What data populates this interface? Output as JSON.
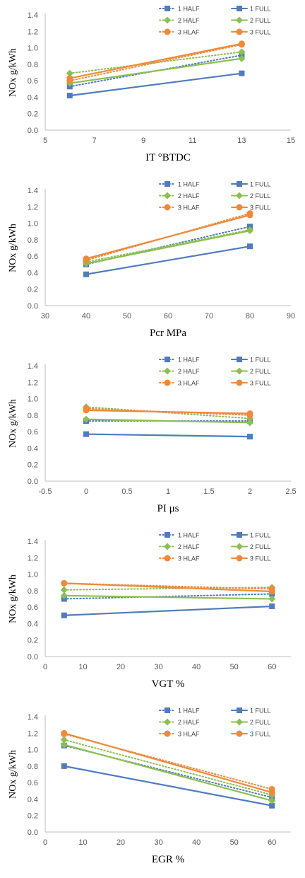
{
  "colors": {
    "s1": "#4f7bbf",
    "s2": "#8cbf4f",
    "s3": "#f0893c"
  },
  "chart_data": [
    {
      "type": "line",
      "xlabel": "IT °BTDC",
      "ylabel": "NOx g/kWh",
      "xlim": [
        5,
        15
      ],
      "xticks": [
        5,
        7,
        9,
        11,
        13,
        15
      ],
      "ylim": [
        0,
        1.4
      ],
      "yticks": [
        "0.0",
        "0.2",
        "0.4",
        "0.6",
        "0.8",
        "1.0",
        "1.2",
        "1.4"
      ],
      "grid": false,
      "legend": "top-right",
      "series": [
        {
          "name": "1 HALF",
          "style": "dotted",
          "color": "s1",
          "marker": "square",
          "x": [
            6,
            13
          ],
          "y": [
            0.53,
            0.91
          ]
        },
        {
          "name": "1 FULL",
          "style": "solid",
          "color": "s1",
          "marker": "square",
          "x": [
            6,
            13
          ],
          "y": [
            0.42,
            0.69
          ]
        },
        {
          "name": "2 HALF",
          "style": "dotted",
          "color": "s2",
          "marker": "diamond",
          "x": [
            6,
            13
          ],
          "y": [
            0.69,
            0.95
          ]
        },
        {
          "name": "2 FULL",
          "style": "solid",
          "color": "s2",
          "marker": "diamond",
          "x": [
            6,
            13
          ],
          "y": [
            0.57,
            0.87
          ]
        },
        {
          "name": "3 HLAF",
          "style": "dotted",
          "color": "s3",
          "marker": "circle",
          "x": [
            6,
            13
          ],
          "y": [
            0.6,
            1.04
          ]
        },
        {
          "name": "3 FULL",
          "style": "solid",
          "color": "s3",
          "marker": "circle",
          "x": [
            6,
            13
          ],
          "y": [
            0.63,
            1.05
          ]
        }
      ]
    },
    {
      "type": "line",
      "xlabel": "Pcr  MPa",
      "ylabel": "NOx g/kWh",
      "xlim": [
        30,
        90
      ],
      "xticks": [
        30,
        40,
        50,
        60,
        70,
        80,
        90
      ],
      "ylim": [
        0,
        1.4
      ],
      "yticks": [
        "0.0",
        "0.2",
        "0.4",
        "0.6",
        "0.8",
        "1.0",
        "1.2",
        "1.4"
      ],
      "grid": false,
      "legend": "top-right",
      "series": [
        {
          "name": "1 HALF",
          "style": "dotted",
          "color": "s1",
          "marker": "square",
          "x": [
            40,
            80
          ],
          "y": [
            0.5,
            0.96
          ]
        },
        {
          "name": "1 FULL",
          "style": "solid",
          "color": "s1",
          "marker": "square",
          "x": [
            40,
            80
          ],
          "y": [
            0.38,
            0.72
          ]
        },
        {
          "name": "2 HALF",
          "style": "dotted",
          "color": "s2",
          "marker": "diamond",
          "x": [
            40,
            80
          ],
          "y": [
            0.53,
            0.92
          ]
        },
        {
          "name": "2 FULL",
          "style": "solid",
          "color": "s2",
          "marker": "diamond",
          "x": [
            40,
            80
          ],
          "y": [
            0.51,
            0.91
          ]
        },
        {
          "name": "3 HLAF",
          "style": "dotted",
          "color": "s3",
          "marker": "circle",
          "x": [
            40,
            80
          ],
          "y": [
            0.55,
            1.12
          ]
        },
        {
          "name": "3 FULL",
          "style": "solid",
          "color": "s3",
          "marker": "circle",
          "x": [
            40,
            80
          ],
          "y": [
            0.57,
            1.1
          ]
        }
      ]
    },
    {
      "type": "line",
      "xlabel": "PI  μs",
      "ylabel": "NOx g/kWh",
      "xlim": [
        -0.5,
        2.5
      ],
      "xticks": [
        -0.5,
        0,
        0.5,
        1,
        1.5,
        2,
        2.5
      ],
      "ylim": [
        0,
        1.4
      ],
      "yticks": [
        "0.0",
        "0.2",
        "0.4",
        "0.6",
        "0.8",
        "1.0",
        "1.2",
        "1.4"
      ],
      "grid": false,
      "legend": "top-right",
      "series": [
        {
          "name": "1 HALF",
          "style": "dotted",
          "color": "s1",
          "marker": "square",
          "x": [
            0,
            2
          ],
          "y": [
            0.73,
            0.73
          ]
        },
        {
          "name": "1 FULL",
          "style": "solid",
          "color": "s1",
          "marker": "square",
          "x": [
            0,
            2
          ],
          "y": [
            0.57,
            0.54
          ]
        },
        {
          "name": "2 HALF",
          "style": "dotted",
          "color": "s2",
          "marker": "diamond",
          "x": [
            0,
            2
          ],
          "y": [
            0.9,
            0.76
          ]
        },
        {
          "name": "2 FULL",
          "style": "solid",
          "color": "s2",
          "marker": "diamond",
          "x": [
            0,
            2
          ],
          "y": [
            0.75,
            0.71
          ]
        },
        {
          "name": "3 HLAF",
          "style": "dotted",
          "color": "s3",
          "marker": "circle",
          "x": [
            0,
            2
          ],
          "y": [
            0.88,
            0.8
          ]
        },
        {
          "name": "3 FULL",
          "style": "solid",
          "color": "s3",
          "marker": "circle",
          "x": [
            0,
            2
          ],
          "y": [
            0.86,
            0.82
          ]
        }
      ]
    },
    {
      "type": "line",
      "xlabel": "VGT  %",
      "ylabel": "NOx g/kWh",
      "xlim": [
        0,
        65
      ],
      "xticks": [
        0,
        10,
        20,
        30,
        40,
        50,
        60
      ],
      "ylim": [
        0,
        1.4
      ],
      "yticks": [
        "0.0",
        "0.2",
        "0.4",
        "0.6",
        "0.8",
        "1.0",
        "1.2",
        "1.4"
      ],
      "grid": false,
      "legend": "top-right",
      "series": [
        {
          "name": "1 HALF",
          "style": "dotted",
          "color": "s1",
          "marker": "square",
          "x": [
            5,
            60
          ],
          "y": [
            0.7,
            0.76
          ]
        },
        {
          "name": "1 FULL",
          "style": "solid",
          "color": "s1",
          "marker": "square",
          "x": [
            5,
            60
          ],
          "y": [
            0.5,
            0.61
          ]
        },
        {
          "name": "2 HALF",
          "style": "dotted",
          "color": "s2",
          "marker": "diamond",
          "x": [
            5,
            60
          ],
          "y": [
            0.81,
            0.84
          ]
        },
        {
          "name": "2 FULL",
          "style": "solid",
          "color": "s2",
          "marker": "diamond",
          "x": [
            5,
            60
          ],
          "y": [
            0.74,
            0.7
          ]
        },
        {
          "name": "3 HLAF",
          "style": "dotted",
          "color": "s3",
          "marker": "circle",
          "x": [
            5,
            60
          ],
          "y": [
            0.89,
            0.82
          ]
        },
        {
          "name": "3 FULL",
          "style": "solid",
          "color": "s3",
          "marker": "circle",
          "x": [
            5,
            60
          ],
          "y": [
            0.89,
            0.79
          ]
        }
      ]
    },
    {
      "type": "line",
      "xlabel": "EGR  %",
      "ylabel": "NOx g/kWh",
      "xlim": [
        0,
        65
      ],
      "xticks": [
        0,
        10,
        20,
        30,
        40,
        50,
        60
      ],
      "ylim": [
        0,
        1.4
      ],
      "yticks": [
        "0.0",
        "0.2",
        "0.4",
        "0.6",
        "0.8",
        "1.0",
        "1.2",
        "1.4"
      ],
      "grid": false,
      "legend": "top-right",
      "series": [
        {
          "name": "1 HALF",
          "style": "dotted",
          "color": "s1",
          "marker": "square",
          "x": [
            5,
            60
          ],
          "y": [
            1.05,
            0.42
          ]
        },
        {
          "name": "1 FULL",
          "style": "solid",
          "color": "s1",
          "marker": "square",
          "x": [
            5,
            60
          ],
          "y": [
            0.8,
            0.32
          ]
        },
        {
          "name": "2 HALF",
          "style": "dotted",
          "color": "s2",
          "marker": "diamond",
          "x": [
            5,
            60
          ],
          "y": [
            1.12,
            0.45
          ]
        },
        {
          "name": "2 FULL",
          "style": "solid",
          "color": "s2",
          "marker": "diamond",
          "x": [
            5,
            60
          ],
          "y": [
            1.06,
            0.38
          ]
        },
        {
          "name": "3 HLAF",
          "style": "dotted",
          "color": "s3",
          "marker": "circle",
          "x": [
            5,
            60
          ],
          "y": [
            1.19,
            0.52
          ]
        },
        {
          "name": "3 FULL",
          "style": "solid",
          "color": "s3",
          "marker": "circle",
          "x": [
            5,
            60
          ],
          "y": [
            1.2,
            0.48
          ]
        }
      ]
    }
  ]
}
